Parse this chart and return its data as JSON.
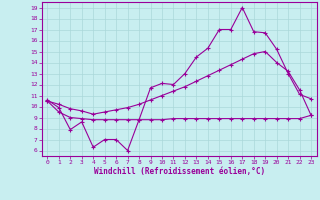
{
  "xlabel": "Windchill (Refroidissement éolien,°C)",
  "bg_color": "#c8eef0",
  "line_color": "#990099",
  "xlim": [
    -0.5,
    23.5
  ],
  "ylim": [
    5.5,
    19.5
  ],
  "xticks": [
    0,
    1,
    2,
    3,
    4,
    5,
    6,
    7,
    8,
    9,
    10,
    11,
    12,
    13,
    14,
    15,
    16,
    17,
    18,
    19,
    20,
    21,
    22,
    23
  ],
  "yticks": [
    6,
    7,
    8,
    9,
    10,
    11,
    12,
    13,
    14,
    15,
    16,
    17,
    18,
    19
  ],
  "line1_x": [
    0,
    1,
    2,
    3,
    4,
    5,
    6,
    7,
    8,
    9,
    10,
    11,
    12,
    13,
    14,
    15,
    16,
    17,
    18,
    19,
    20,
    21,
    22,
    23
  ],
  "line1_y": [
    10.6,
    9.9,
    7.9,
    8.6,
    6.3,
    7.0,
    7.0,
    6.0,
    8.8,
    11.7,
    12.1,
    12.0,
    13.0,
    14.5,
    15.3,
    17.0,
    17.0,
    19.0,
    16.8,
    16.7,
    15.2,
    13.0,
    11.1,
    10.7
  ],
  "line2_x": [
    0,
    1,
    2,
    3,
    4,
    5,
    6,
    7,
    8,
    9,
    10,
    11,
    12,
    13,
    14,
    15,
    16,
    17,
    18,
    19,
    20,
    21,
    22,
    23
  ],
  "line2_y": [
    10.5,
    10.2,
    9.8,
    9.6,
    9.3,
    9.5,
    9.7,
    9.9,
    10.2,
    10.6,
    11.0,
    11.4,
    11.8,
    12.3,
    12.8,
    13.3,
    13.8,
    14.3,
    14.8,
    15.0,
    14.0,
    13.2,
    11.5,
    9.2
  ],
  "line3_x": [
    0,
    1,
    2,
    3,
    4,
    5,
    6,
    7,
    8,
    9,
    10,
    11,
    12,
    13,
    14,
    15,
    16,
    17,
    18,
    19,
    20,
    21,
    22,
    23
  ],
  "line3_y": [
    10.5,
    9.5,
    9.0,
    8.9,
    8.8,
    8.8,
    8.8,
    8.8,
    8.8,
    8.8,
    8.8,
    8.9,
    8.9,
    8.9,
    8.9,
    8.9,
    8.9,
    8.9,
    8.9,
    8.9,
    8.9,
    8.9,
    8.9,
    9.2
  ],
  "grid_color": "#aad8da",
  "spine_color": "#990099",
  "marker": "+",
  "markersize": 3.5,
  "linewidth": 0.8
}
